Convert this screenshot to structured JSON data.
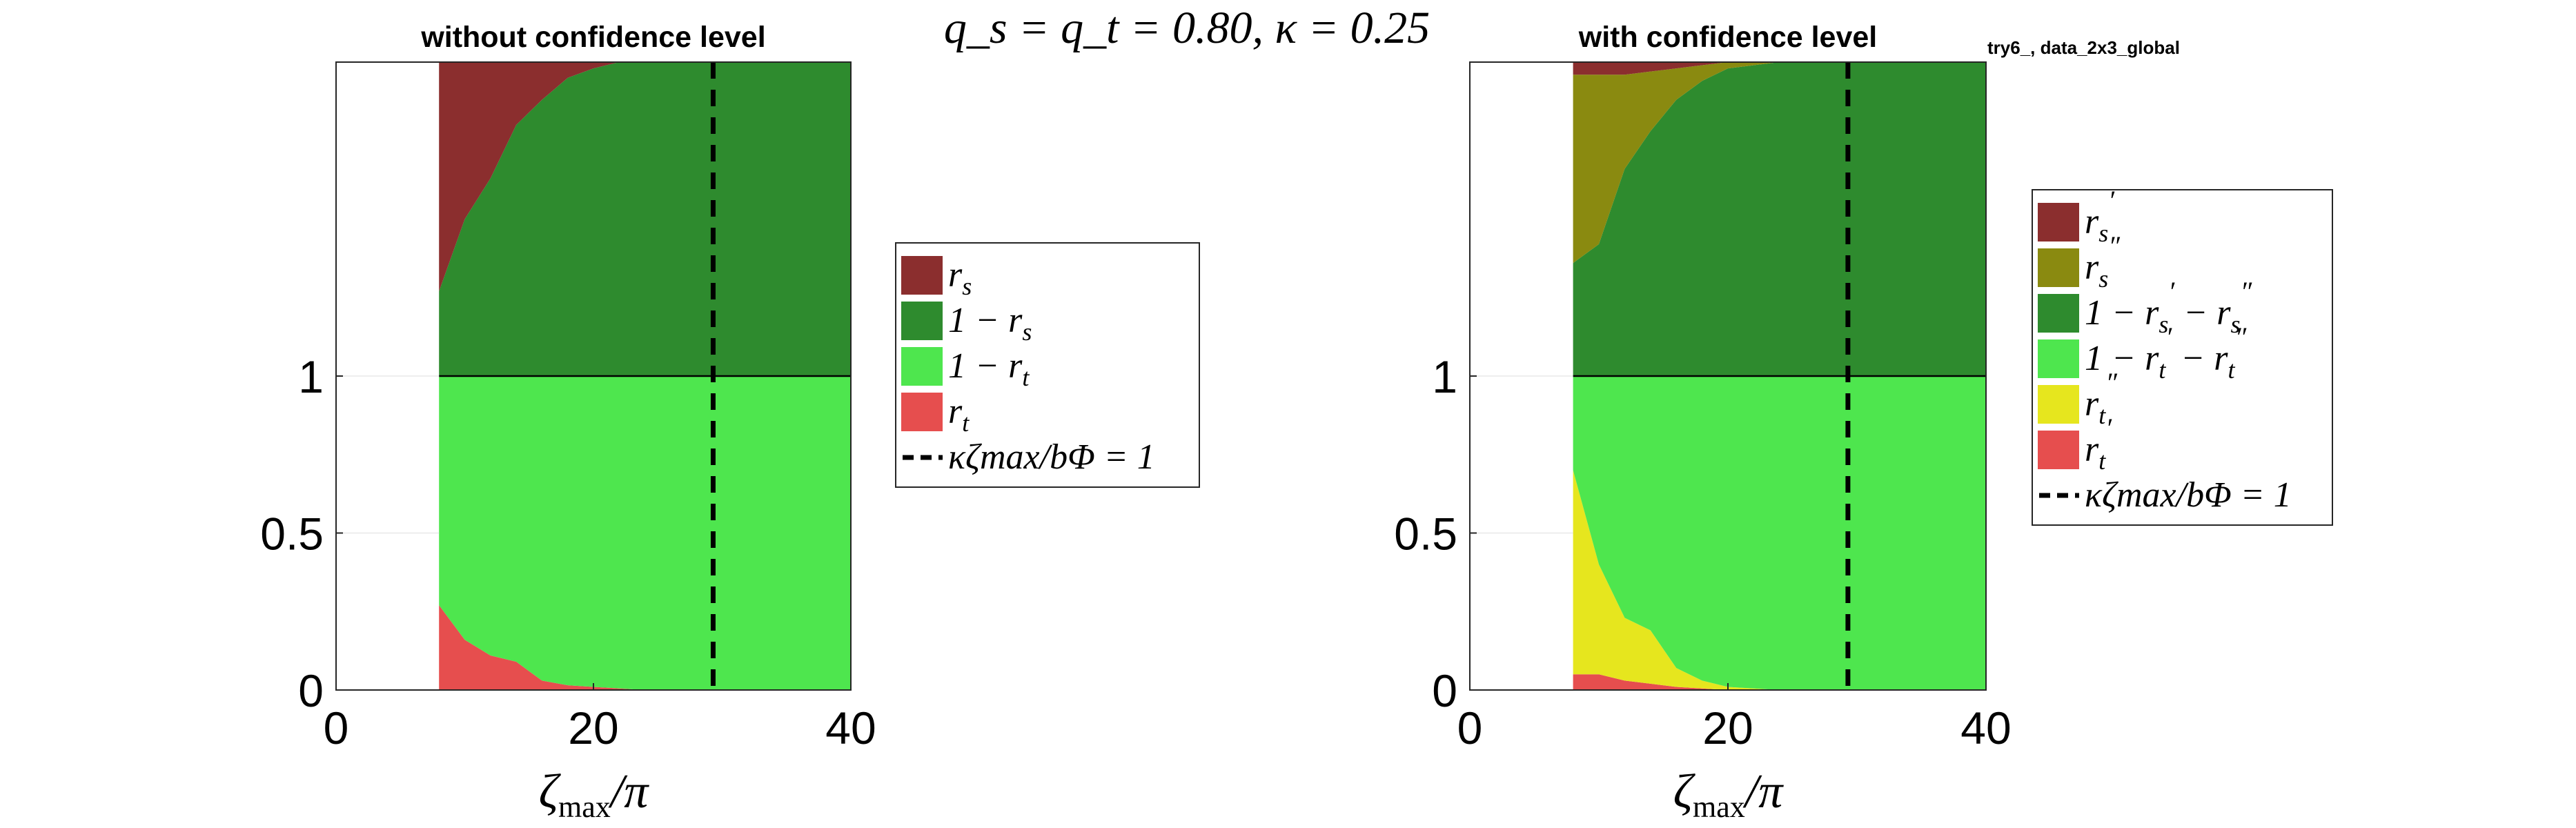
{
  "figure": {
    "suptitle": "q_s = q_t = 0.80,  κ = 0.25",
    "tag": "try6_, data_2x3_global"
  },
  "colors": {
    "r_s_prime": "#8b2e2e",
    "r_s_dprime": "#8a8a10",
    "one_minus_rs": "#2e8b2e",
    "one_minus_rt": "#4ee64e",
    "r_t_dprime": "#e6e61e",
    "r_t_prime": "#e64e4e",
    "vline": "#000000"
  },
  "chart_data": [
    {
      "type": "area",
      "title": "without confidence level",
      "xlabel": "ζmax/π",
      "ylabel": "",
      "xlim": [
        0,
        40
      ],
      "ylim": [
        0,
        2
      ],
      "xticks": [
        "0",
        "20",
        "40"
      ],
      "yticks": [
        "0",
        "0.5",
        "1"
      ],
      "x": [
        8,
        10,
        12,
        14,
        16,
        18,
        20,
        22,
        24,
        26,
        28,
        30,
        32,
        34,
        36,
        38,
        40
      ],
      "split": 1,
      "bottom_series": [
        {
          "name": "r_t",
          "color_key": "r_t_prime",
          "values": [
            0.27,
            0.16,
            0.11,
            0.09,
            0.03,
            0.015,
            0.01,
            0.005,
            0,
            0,
            0,
            0,
            0,
            0,
            0,
            0,
            0
          ]
        },
        {
          "name": "1 − r_t",
          "color_key": "one_minus_rt",
          "values": "remainder"
        }
      ],
      "top_series": [
        {
          "name": "1 − r_s",
          "color_key": "one_minus_rs",
          "values": "remainder"
        },
        {
          "name": "r_s",
          "color_key": "r_s_prime",
          "values": [
            0.73,
            0.5,
            0.37,
            0.2,
            0.12,
            0.05,
            0.02,
            0,
            0,
            0,
            0,
            0,
            0,
            0,
            0,
            0,
            0
          ]
        }
      ],
      "vline_x": 29.3,
      "legend_placement": "right",
      "legend": [
        {
          "label": "r_s",
          "color_key": "r_s_prime",
          "kind": "patch"
        },
        {
          "label": "1 − r_s",
          "color_key": "one_minus_rs",
          "kind": "patch"
        },
        {
          "label": "1 − r_t",
          "color_key": "one_minus_rt",
          "kind": "patch"
        },
        {
          "label": "r_t",
          "color_key": "r_t_prime",
          "kind": "patch"
        },
        {
          "label": "κζmax/bΦ = 1",
          "color_key": "vline",
          "kind": "dash"
        }
      ]
    },
    {
      "type": "area",
      "title": "with confidence level",
      "xlabel": "ζmax/π",
      "ylabel": "",
      "xlim": [
        0,
        40
      ],
      "ylim": [
        0,
        2
      ],
      "xticks": [
        "0",
        "20",
        "40"
      ],
      "yticks": [
        "0",
        "0.5",
        "1"
      ],
      "x": [
        8,
        10,
        12,
        14,
        16,
        18,
        20,
        22,
        24,
        26,
        28,
        30,
        32,
        34,
        36,
        38,
        40
      ],
      "split": 1,
      "bottom_series": [
        {
          "name": "r_t′",
          "color_key": "r_t_prime",
          "values": [
            0.05,
            0.05,
            0.03,
            0.02,
            0.01,
            0.005,
            0,
            0,
            0,
            0,
            0,
            0,
            0,
            0,
            0,
            0,
            0
          ]
        },
        {
          "name": "r_t″",
          "color_key": "r_t_dprime",
          "values": [
            0.65,
            0.35,
            0.2,
            0.17,
            0.06,
            0.025,
            0.01,
            0.005,
            0,
            0,
            0,
            0,
            0,
            0,
            0,
            0,
            0
          ]
        },
        {
          "name": "1 − r_t′ − r_t″",
          "color_key": "one_minus_rt",
          "values": "remainder"
        }
      ],
      "top_series": [
        {
          "name": "1 − r_s′ − r_s″",
          "color_key": "one_minus_rs",
          "values": "remainder"
        },
        {
          "name": "r_s″",
          "color_key": "r_s_dprime",
          "values": [
            0.6,
            0.54,
            0.3,
            0.19,
            0.1,
            0.05,
            0.02,
            0.01,
            0,
            0,
            0,
            0,
            0,
            0,
            0,
            0,
            0
          ]
        },
        {
          "name": "r_s′",
          "color_key": "r_s_prime",
          "values": [
            0.04,
            0.04,
            0.04,
            0.03,
            0.02,
            0.01,
            0,
            0,
            0,
            0,
            0,
            0,
            0,
            0,
            0,
            0,
            0
          ]
        }
      ],
      "vline_x": 29.3,
      "legend_placement": "right",
      "legend": [
        {
          "label": "r_s′",
          "color_key": "r_s_prime",
          "kind": "patch"
        },
        {
          "label": "r_s″",
          "color_key": "r_s_dprime",
          "kind": "patch"
        },
        {
          "label": "1 − r_s′ − r_s″",
          "color_key": "one_minus_rs",
          "kind": "patch"
        },
        {
          "label": "1 − r_t′ − r_t″",
          "color_key": "one_minus_rt",
          "kind": "patch"
        },
        {
          "label": "r_t″",
          "color_key": "r_t_dprime",
          "kind": "patch"
        },
        {
          "label": "r_t′",
          "color_key": "r_t_prime",
          "kind": "patch"
        },
        {
          "label": "κζmax/bΦ = 1",
          "color_key": "vline",
          "kind": "dash"
        }
      ]
    }
  ]
}
